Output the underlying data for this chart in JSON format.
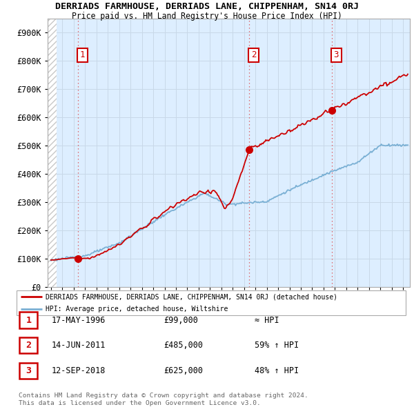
{
  "title": "DERRIADS FARMHOUSE, DERRIADS LANE, CHIPPENHAM, SN14 0RJ",
  "subtitle": "Price paid vs. HM Land Registry's House Price Index (HPI)",
  "ylabel_ticks": [
    "£0",
    "£100K",
    "£200K",
    "£300K",
    "£400K",
    "£500K",
    "£600K",
    "£700K",
    "£800K",
    "£900K"
  ],
  "ytick_values": [
    0,
    100000,
    200000,
    300000,
    400000,
    500000,
    600000,
    700000,
    800000,
    900000
  ],
  "ylim_top": 950000,
  "xlim_start": 1993.7,
  "xlim_end": 2025.6,
  "sale_dates_decimal": [
    1996.37,
    2011.45,
    2018.71
  ],
  "sale_prices": [
    99000,
    485000,
    625000
  ],
  "sale_labels": [
    "1",
    "2",
    "3"
  ],
  "property_color": "#cc0000",
  "hpi_color": "#7ab0d4",
  "plot_bg_color": "#ddeeff",
  "hatch_bg_color": "#ffffff",
  "hatch_stripe_color": "#c8c8c8",
  "legend_property": "DERRIADS FARMHOUSE, DERRIADS LANE, CHIPPENHAM, SN14 0RJ (detached house)",
  "legend_hpi": "HPI: Average price, detached house, Wiltshire",
  "table_rows": [
    [
      "1",
      "17-MAY-1996",
      "£99,000",
      "≈ HPI"
    ],
    [
      "2",
      "14-JUN-2011",
      "£485,000",
      "59% ↑ HPI"
    ],
    [
      "3",
      "12-SEP-2018",
      "£625,000",
      "48% ↑ HPI"
    ]
  ],
  "footnote": "Contains HM Land Registry data © Crown copyright and database right 2024.\nThis data is licensed under the Open Government Licence v3.0.",
  "grid_color": "#c8d8e8",
  "vline_color": "#dd4444",
  "border_color": "#aaaaaa",
  "xtick_start": 1994,
  "xtick_end": 2025
}
